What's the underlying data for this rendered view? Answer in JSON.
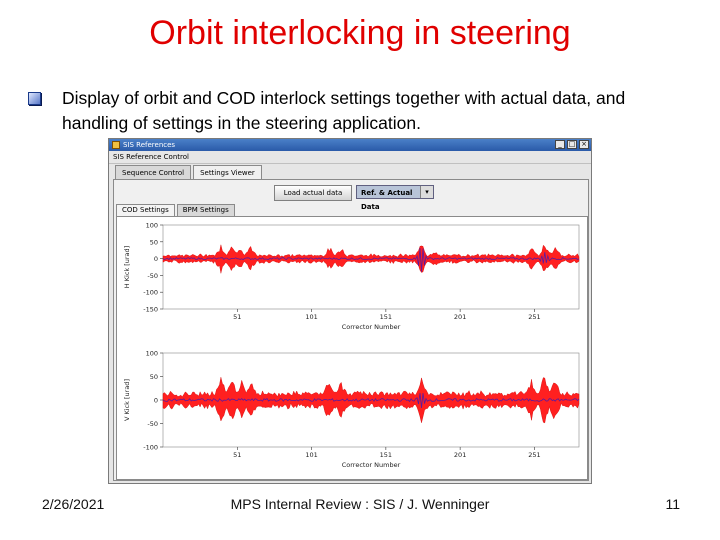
{
  "slide": {
    "title": "Orbit interlocking in steering",
    "bullet": "Display of orbit and COD interlock settings together with actual data, and handling of settings in the steering application.",
    "footer_date": "2/26/2021",
    "footer_center": "MPS Internal Review : SIS / J. Wenninger",
    "footer_page": "11"
  },
  "window": {
    "title": "SIS References",
    "panel_label": "SIS Reference Control",
    "tabs": [
      "Sequence Control",
      "Settings Viewer"
    ],
    "active_tab": 1,
    "load_button": "Load actual data",
    "select_value": "Ref. & Actual Data",
    "subtabs": [
      "COD Settings",
      "BPM Settings"
    ],
    "active_subtab": 0,
    "win_buttons": [
      "_",
      "□",
      "×"
    ]
  },
  "colors": {
    "title": "#e00000",
    "band": "#ff2020",
    "trace": "#5a1aa0"
  },
  "chart_data": [
    {
      "type": "line",
      "ylabel": "H Kick [urad]",
      "xlabel": "Corrector Number",
      "yticks": [
        "100",
        "50",
        "0",
        "-50",
        "-100",
        "-150"
      ],
      "ytick_values": [
        100,
        50,
        0,
        -50,
        -100,
        -150
      ],
      "ylim": [
        -150,
        100
      ],
      "xticks": [
        "51",
        "101",
        "151",
        "201",
        "251"
      ],
      "xtick_values": [
        51,
        101,
        151,
        201,
        251
      ],
      "xlim": [
        1,
        281
      ],
      "series": [
        {
          "kind": "band",
          "base_half_width": 10,
          "spikes": [
            {
              "x": 40,
              "amp": 30
            },
            {
              "x": 47,
              "amp": 30
            },
            {
              "x": 52,
              "amp": 26
            },
            {
              "x": 60,
              "amp": 24
            },
            {
              "x": 113,
              "amp": 22
            },
            {
              "x": 121,
              "amp": 24
            },
            {
              "x": 175,
              "amp": 32
            },
            {
              "x": 183,
              "amp": 12
            },
            {
              "x": 249,
              "amp": 22
            },
            {
              "x": 258,
              "amp": 36
            },
            {
              "x": 265,
              "amp": 24
            }
          ]
        },
        {
          "kind": "trace",
          "spikes": [
            {
              "x": 175,
              "amp": 40
            },
            {
              "x": 258,
              "amp": 20
            }
          ]
        }
      ]
    },
    {
      "type": "line",
      "ylabel": "V Kick [urad]",
      "xlabel": "Corrector Number",
      "yticks": [
        "100",
        "50",
        "0",
        "-50",
        "-100"
      ],
      "ytick_values": [
        100,
        50,
        0,
        -50,
        -100
      ],
      "ylim": [
        -100,
        100
      ],
      "xticks": [
        "51",
        "101",
        "151",
        "201",
        "251"
      ],
      "xtick_values": [
        51,
        101,
        151,
        201,
        251
      ],
      "xlim": [
        1,
        281
      ],
      "series": [
        {
          "kind": "band",
          "base_half_width": 14,
          "spikes": [
            {
              "x": 40,
              "amp": 34
            },
            {
              "x": 47,
              "amp": 32
            },
            {
              "x": 54,
              "amp": 26
            },
            {
              "x": 60,
              "amp": 24
            },
            {
              "x": 113,
              "amp": 28
            },
            {
              "x": 121,
              "amp": 24
            },
            {
              "x": 175,
              "amp": 30
            },
            {
              "x": 249,
              "amp": 26
            },
            {
              "x": 258,
              "amp": 44
            },
            {
              "x": 265,
              "amp": 28
            }
          ]
        },
        {
          "kind": "trace",
          "spikes": [
            {
              "x": 175,
              "amp": 18
            }
          ]
        }
      ]
    }
  ]
}
